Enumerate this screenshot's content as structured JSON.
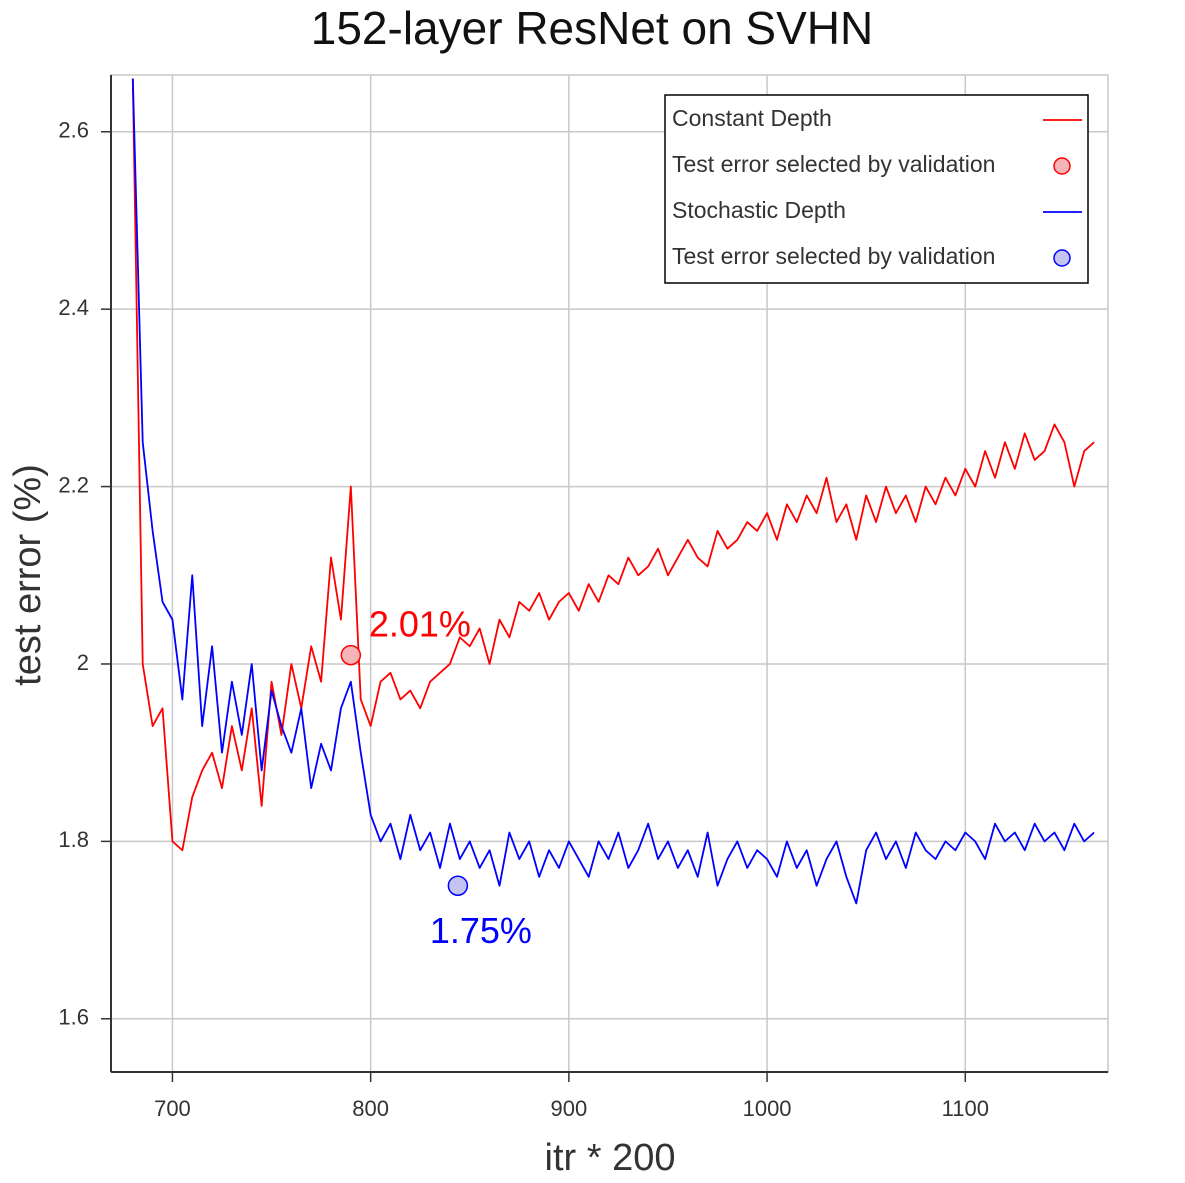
{
  "chart_data": {
    "type": "line",
    "title": "152-layer ResNet on SVHN",
    "x_label": "itr * 200",
    "y_label": "test error (%)",
    "xlim": [
      669,
      1172
    ],
    "ylim": [
      1.54,
      2.664
    ],
    "xticks": [
      700,
      800,
      900,
      1000,
      1100
    ],
    "yticks": [
      1.6,
      1.8,
      2,
      2.2,
      2.4,
      2.6
    ],
    "grid": true,
    "legend": "upper right",
    "x": [
      680,
      685,
      690,
      695,
      700,
      705,
      710,
      715,
      720,
      725,
      730,
      735,
      740,
      745,
      750,
      755,
      760,
      765,
      770,
      775,
      780,
      785,
      790,
      795,
      800,
      805,
      810,
      815,
      820,
      825,
      830,
      835,
      840,
      845,
      850,
      855,
      860,
      865,
      870,
      875,
      880,
      885,
      890,
      895,
      900,
      905,
      910,
      915,
      920,
      925,
      930,
      935,
      940,
      945,
      950,
      955,
      960,
      965,
      970,
      975,
      980,
      985,
      990,
      995,
      1000,
      1005,
      1010,
      1015,
      1020,
      1025,
      1030,
      1035,
      1040,
      1045,
      1050,
      1055,
      1060,
      1065,
      1070,
      1075,
      1080,
      1085,
      1090,
      1095,
      1100,
      1105,
      1110,
      1115,
      1120,
      1125,
      1130,
      1135,
      1140,
      1145,
      1150,
      1155,
      1160,
      1165
    ],
    "series": [
      {
        "name": "Constant Depth",
        "type": "line",
        "color": "#ff0000",
        "values": [
          2.66,
          2.0,
          1.93,
          1.95,
          1.8,
          1.79,
          1.85,
          1.88,
          1.9,
          1.86,
          1.93,
          1.88,
          1.95,
          1.84,
          1.98,
          1.92,
          2.0,
          1.95,
          2.02,
          1.98,
          2.12,
          2.05,
          2.2,
          1.96,
          1.93,
          1.98,
          1.99,
          1.96,
          1.97,
          1.95,
          1.98,
          1.99,
          2.0,
          2.03,
          2.02,
          2.04,
          2.0,
          2.05,
          2.03,
          2.07,
          2.06,
          2.08,
          2.05,
          2.07,
          2.08,
          2.06,
          2.09,
          2.07,
          2.1,
          2.09,
          2.12,
          2.1,
          2.11,
          2.13,
          2.1,
          2.12,
          2.14,
          2.12,
          2.11,
          2.15,
          2.13,
          2.14,
          2.16,
          2.15,
          2.17,
          2.14,
          2.18,
          2.16,
          2.19,
          2.17,
          2.21,
          2.16,
          2.18,
          2.14,
          2.19,
          2.16,
          2.2,
          2.17,
          2.19,
          2.16,
          2.2,
          2.18,
          2.21,
          2.19,
          2.22,
          2.2,
          2.24,
          2.21,
          2.25,
          2.22,
          2.26,
          2.23,
          2.24,
          2.27,
          2.25,
          2.2,
          2.24,
          2.25
        ]
      },
      {
        "name": "Test error selected by validation",
        "type": "scatter",
        "color": "#ff0000",
        "fill": "#f4b4b8",
        "x": [
          790
        ],
        "values": [
          2.01
        ],
        "value_labels": [
          "2.01%"
        ]
      },
      {
        "name": "Stochastic Depth",
        "type": "line",
        "color": "#0000ff",
        "values": [
          2.66,
          2.25,
          2.15,
          2.07,
          2.05,
          1.96,
          2.1,
          1.93,
          2.02,
          1.9,
          1.98,
          1.92,
          2.0,
          1.88,
          1.97,
          1.93,
          1.9,
          1.95,
          1.86,
          1.91,
          1.88,
          1.95,
          1.98,
          1.9,
          1.83,
          1.8,
          1.82,
          1.78,
          1.83,
          1.79,
          1.81,
          1.77,
          1.82,
          1.78,
          1.8,
          1.77,
          1.79,
          1.75,
          1.81,
          1.78,
          1.8,
          1.76,
          1.79,
          1.77,
          1.8,
          1.78,
          1.76,
          1.8,
          1.78,
          1.81,
          1.77,
          1.79,
          1.82,
          1.78,
          1.8,
          1.77,
          1.79,
          1.76,
          1.81,
          1.75,
          1.78,
          1.8,
          1.77,
          1.79,
          1.78,
          1.76,
          1.8,
          1.77,
          1.79,
          1.75,
          1.78,
          1.8,
          1.76,
          1.73,
          1.79,
          1.81,
          1.78,
          1.8,
          1.77,
          1.81,
          1.79,
          1.78,
          1.8,
          1.79,
          1.81,
          1.8,
          1.78,
          1.82,
          1.8,
          1.81,
          1.79,
          1.82,
          1.8,
          1.81,
          1.79,
          1.82,
          1.8,
          1.81
        ]
      },
      {
        "name": "Test error selected by validation",
        "type": "scatter",
        "color": "#0000ff",
        "fill": "#c4c4f0",
        "x": [
          844
        ],
        "values": [
          1.75
        ],
        "value_labels": [
          "1.75%"
        ]
      }
    ]
  }
}
